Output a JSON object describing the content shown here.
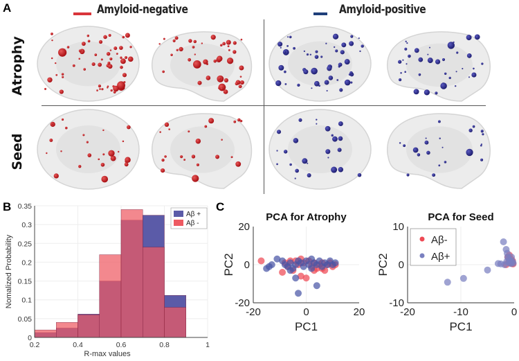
{
  "panels": {
    "a": "A",
    "b": "B",
    "c": "C"
  },
  "brain_panel": {
    "legend": [
      {
        "label": "Amyloid-negative",
        "color": "#d9353b"
      },
      {
        "label": "Amyloid-positive",
        "color": "#1f3f7a"
      }
    ],
    "rows": [
      "Atrophy",
      "Seed"
    ],
    "dot_colors": {
      "negative": "#c4161c",
      "positive": "#2a2a8a"
    }
  },
  "chart_data": [
    {
      "type": "bar",
      "subtype": "overlaid-histogram",
      "title": "",
      "xlabel": "R-max values",
      "ylabel": "Nomalized  Probability",
      "xlim": [
        0.2,
        1.0
      ],
      "ylim": [
        0,
        0.35
      ],
      "xticks": [
        "0.2",
        "0.4",
        "0.6",
        "0.8",
        "1"
      ],
      "yticks": [
        "0",
        "0.05",
        "0.1",
        "0.15",
        "0.2",
        "0.25",
        "0.3",
        "0.35"
      ],
      "bin_edges": [
        0.2,
        0.3,
        0.4,
        0.5,
        0.6,
        0.7,
        0.8,
        0.9
      ],
      "series": [
        {
          "name": "Aβ +",
          "color": "#5b5ba8",
          "values": [
            0.013,
            0.025,
            0.062,
            0.15,
            0.312,
            0.325,
            0.112
          ]
        },
        {
          "name": "Aβ -",
          "color": "#ee5a62",
          "values": [
            0.02,
            0.04,
            0.06,
            0.22,
            0.34,
            0.24,
            0.08
          ]
        }
      ],
      "legend_placement": "top-right",
      "grid": true
    },
    {
      "type": "scatter",
      "title": "PCA for Atrophy",
      "xlabel": "PC1",
      "ylabel": "PC2",
      "xlim": [
        -20,
        20
      ],
      "ylim": [
        -20,
        20
      ],
      "xticks": [
        "-20",
        "0",
        "20"
      ],
      "yticks": [
        "-20",
        "0",
        "20"
      ],
      "grid": true,
      "series": [
        {
          "name": "Aβ-",
          "color": "#ee4a55",
          "points": [
            [
              -17,
              2
            ],
            [
              -9,
              -4
            ],
            [
              -8,
              1
            ],
            [
              -6,
              2
            ],
            [
              -5,
              -3
            ],
            [
              -4,
              2
            ],
            [
              -3,
              0
            ],
            [
              -2,
              -6
            ],
            [
              -1,
              1
            ],
            [
              0,
              -7
            ],
            [
              1,
              2
            ],
            [
              2,
              -1
            ],
            [
              3,
              1
            ],
            [
              4,
              -2
            ],
            [
              5,
              0
            ],
            [
              6,
              1
            ],
            [
              7,
              -3
            ],
            [
              8,
              0
            ],
            [
              9,
              1
            ],
            [
              10,
              -1
            ],
            [
              11,
              0
            ],
            [
              -7,
              -1
            ],
            [
              -2,
              3
            ],
            [
              3,
              -3
            ],
            [
              6,
              -2
            ]
          ]
        },
        {
          "name": "Aβ+",
          "color": "#4a56a6",
          "points": [
            [
              -15,
              -2
            ],
            [
              -14,
              -1
            ],
            [
              -13,
              0
            ],
            [
              -11,
              3
            ],
            [
              -9,
              2
            ],
            [
              -8,
              0
            ],
            [
              -7,
              -1
            ],
            [
              -6,
              1
            ],
            [
              -5,
              -2
            ],
            [
              -4,
              -7
            ],
            [
              -4,
              0
            ],
            [
              -3,
              2
            ],
            [
              -3,
              -15
            ],
            [
              -2,
              1
            ],
            [
              -1,
              -1
            ],
            [
              0,
              2
            ],
            [
              1,
              0
            ],
            [
              2,
              -2
            ],
            [
              3,
              1
            ],
            [
              4,
              -11
            ],
            [
              4,
              0
            ],
            [
              5,
              2
            ],
            [
              6,
              -1
            ],
            [
              7,
              1
            ],
            [
              8,
              0
            ],
            [
              9,
              2
            ],
            [
              10,
              0
            ],
            [
              11,
              1
            ],
            [
              -6,
              -3
            ],
            [
              2,
              3
            ]
          ]
        }
      ]
    },
    {
      "type": "scatter",
      "title": "PCA for Seed",
      "xlabel": "PC1",
      "ylabel": "PC2",
      "xlim": [
        -20,
        0
      ],
      "ylim": [
        -10,
        10
      ],
      "xticks": [
        "-20",
        "-10",
        "0"
      ],
      "yticks": [
        "-10",
        "0",
        "10"
      ],
      "grid": true,
      "legend_placement": "top-left",
      "series": [
        {
          "name": "Aβ-",
          "color": "#ee4a55",
          "points": [
            [
              -1.2,
              2
            ],
            [
              -1,
              1
            ],
            [
              -0.8,
              0.5
            ],
            [
              -0.6,
              1.5
            ],
            [
              -0.4,
              0.3
            ],
            [
              -0.3,
              1
            ],
            [
              -1.5,
              0
            ],
            [
              -0.9,
              2.5
            ],
            [
              -0.5,
              0.8
            ],
            [
              -0.2,
              0.2
            ]
          ]
        },
        {
          "name": "Aβ+",
          "color": "#7a80c0",
          "points": [
            [
              -12.5,
              -4.6
            ],
            [
              -9.5,
              -3.6
            ],
            [
              -5,
              -1.4
            ],
            [
              -3,
              0.3
            ],
            [
              -2.5,
              0.2
            ],
            [
              -2,
              6
            ],
            [
              -1.5,
              4
            ],
            [
              -1.3,
              3
            ],
            [
              -1.2,
              2
            ],
            [
              -1,
              1.5
            ],
            [
              -0.9,
              0.5
            ],
            [
              -0.7,
              1
            ],
            [
              -0.6,
              0.3
            ],
            [
              -0.5,
              2
            ],
            [
              -0.3,
              0.8
            ],
            [
              -0.2,
              0.4
            ],
            [
              -1.8,
              0
            ],
            [
              -1.4,
              0.8
            ]
          ]
        }
      ]
    }
  ]
}
